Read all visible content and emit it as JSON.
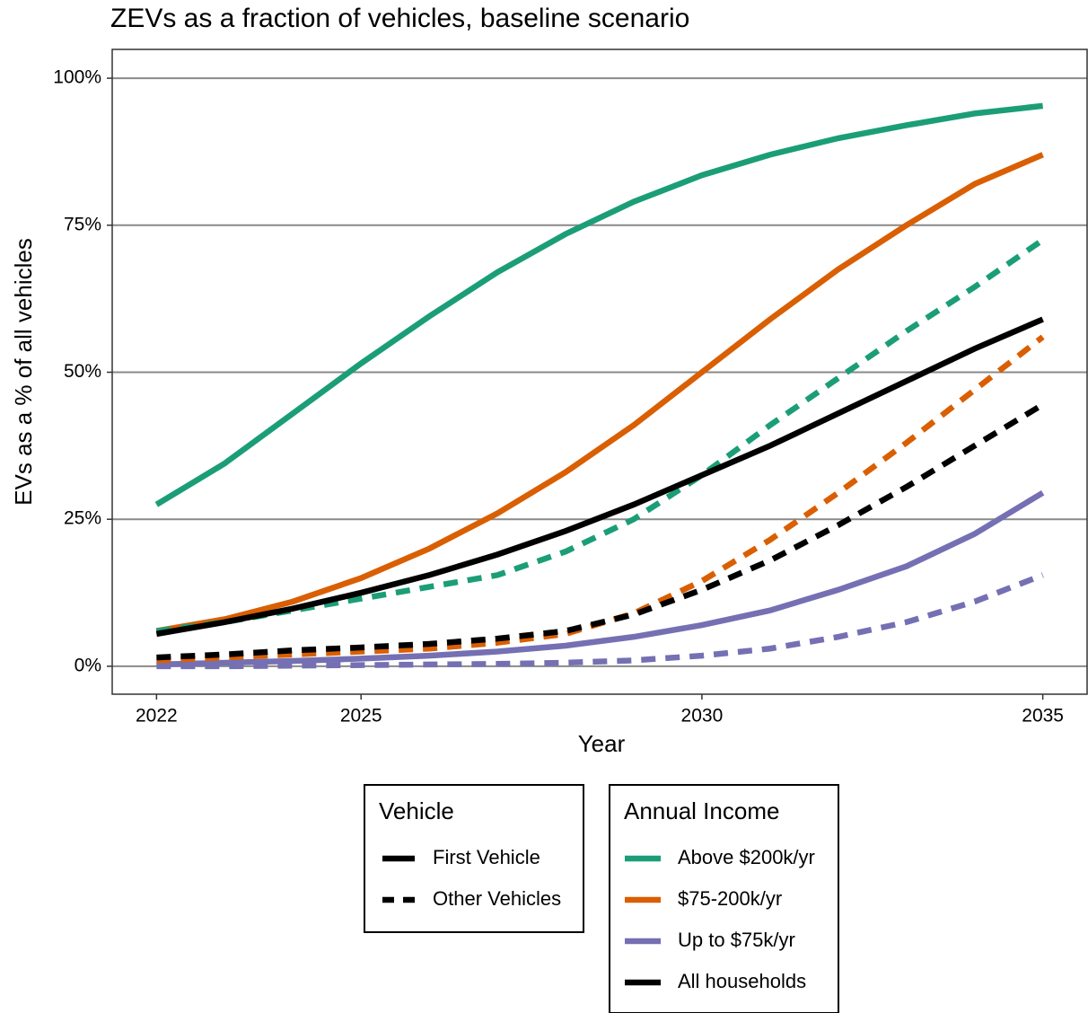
{
  "chart_data": {
    "type": "line",
    "title": "ZEVs as a fraction of vehicles, baseline scenario",
    "x_label": "Year",
    "y_label": "EVs as a % of all vehicles",
    "x": [
      2022,
      2023,
      2024,
      2025,
      2026,
      2027,
      2028,
      2029,
      2030,
      2031,
      2032,
      2033,
      2034,
      2035
    ],
    "series": [
      {
        "color": "#1b9e77",
        "linetype": "solid",
        "values": [
          27.5,
          34.5,
          43,
          51.5,
          59.5,
          67,
          73.5,
          79,
          83.5,
          87,
          89.8,
          92,
          94,
          95.3
        ]
      },
      {
        "color": "#d95f02",
        "linetype": "solid",
        "values": [
          6,
          8,
          11,
          15,
          20,
          26,
          33,
          41,
          50,
          59,
          67.5,
          75,
          82,
          87
        ]
      },
      {
        "color": "#7570b3",
        "linetype": "solid",
        "values": [
          0.3,
          0.6,
          0.9,
          1.3,
          1.8,
          2.5,
          3.5,
          5,
          7,
          9.5,
          13,
          17,
          22.5,
          29.5
        ]
      },
      {
        "color": "#1b9e77",
        "linetype": "dashed",
        "values": [
          6,
          7.5,
          9.5,
          11.5,
          13.5,
          15.5,
          19.5,
          25,
          32.5,
          41,
          49,
          57,
          64.5,
          72.5
        ]
      },
      {
        "color": "#d95f02",
        "linetype": "dashed",
        "values": [
          1,
          1.5,
          2,
          2.5,
          3,
          4,
          5.5,
          9,
          14.5,
          21.5,
          29.5,
          38,
          47,
          56
        ]
      },
      {
        "color": "#7570b3",
        "linetype": "dashed",
        "values": [
          0,
          0,
          0.1,
          0.2,
          0.3,
          0.4,
          0.6,
          1,
          1.8,
          3,
          5,
          7.5,
          11,
          15.5
        ]
      },
      {
        "color": "#000000",
        "linetype": "solid",
        "values": [
          5.5,
          7.5,
          9.8,
          12.5,
          15.5,
          19,
          23,
          27.5,
          32.5,
          37.5,
          43,
          48.5,
          54,
          59
        ]
      },
      {
        "color": "#000000",
        "linetype": "dashed",
        "values": [
          1.5,
          2,
          2.7,
          3.2,
          3.8,
          4.7,
          6,
          8.8,
          13,
          18,
          24,
          30.5,
          37.5,
          44.5
        ]
      }
    ],
    "xlim": [
      2021.35,
      2035.65
    ],
    "ylim": [
      -4.75,
      104.9
    ],
    "xticks": [
      2022,
      2025,
      2030,
      2035
    ],
    "yticks": [
      {
        "value": 0,
        "label": "0%"
      },
      {
        "value": 25,
        "label": "25%"
      },
      {
        "value": 50,
        "label": "50%"
      },
      {
        "value": 75,
        "label": "75%"
      },
      {
        "value": 100,
        "label": "100%"
      }
    ],
    "grid": true,
    "legends": [
      {
        "title": "Vehicle",
        "items": [
          {
            "label": "First Vehicle",
            "linetype": "solid",
            "color": "#000000"
          },
          {
            "label": "Other Vehicles",
            "linetype": "dashed",
            "color": "#000000"
          }
        ]
      },
      {
        "title": "Annual Income",
        "items": [
          {
            "label": "Above $200k/yr",
            "linetype": "solid",
            "color": "#1b9e77"
          },
          {
            "label": "$75-200k/yr",
            "linetype": "solid",
            "color": "#d95f02"
          },
          {
            "label": "Up to $75k/yr",
            "linetype": "solid",
            "color": "#7570b3"
          },
          {
            "label": "All households",
            "linetype": "solid",
            "color": "#000000"
          }
        ]
      }
    ]
  }
}
